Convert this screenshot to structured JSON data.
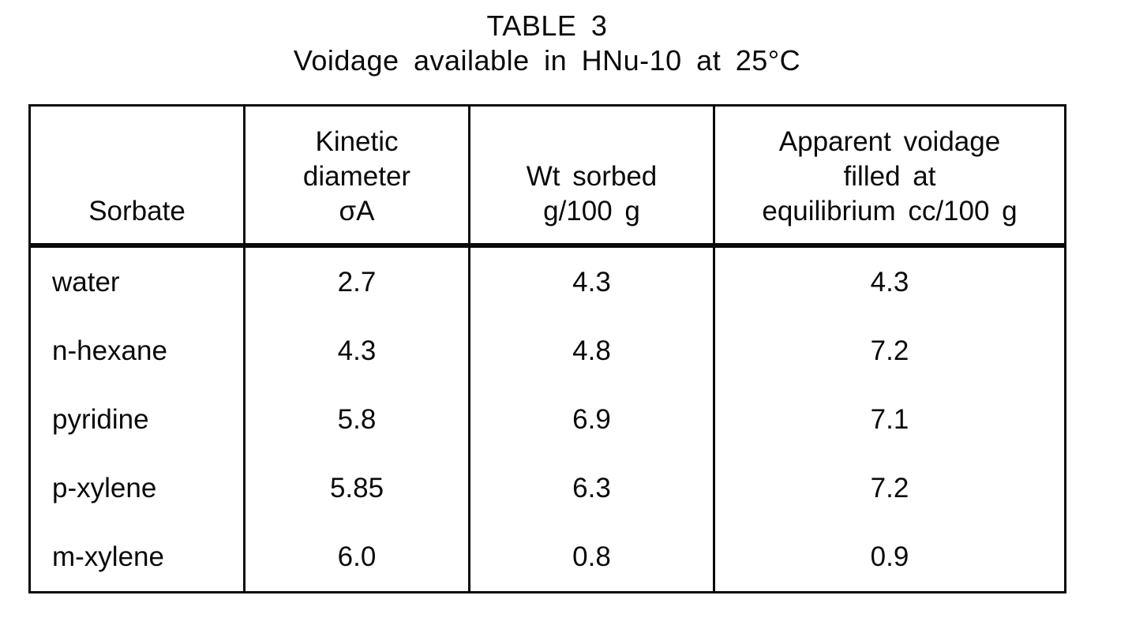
{
  "page": {
    "title_line1": "TABLE 3",
    "title_line2": "Voidage available in HNu-10 at 25°C"
  },
  "table": {
    "headers": {
      "sorbate": {
        "line1": "Sorbate"
      },
      "kinetic": {
        "line1": "Kinetic",
        "line2": "diameter",
        "line3": "σA"
      },
      "wt_sorbed": {
        "line1": "Wt sorbed",
        "line2": "g/100 g"
      },
      "apparent_voidage": {
        "line1": "Apparent voidage",
        "line2": "filled at",
        "line3": "equilibrium cc/100 g"
      }
    },
    "rows": [
      {
        "sorbate": "water",
        "kinetic_diameter": "2.7",
        "wt_sorbed": "4.3",
        "apparent_voidage": "4.3"
      },
      {
        "sorbate": "n-hexane",
        "kinetic_diameter": "4.3",
        "wt_sorbed": "4.8",
        "apparent_voidage": "7.2"
      },
      {
        "sorbate": "pyridine",
        "kinetic_diameter": "5.8",
        "wt_sorbed": "6.9",
        "apparent_voidage": "7.1"
      },
      {
        "sorbate": "p-xylene",
        "kinetic_diameter": "5.85",
        "wt_sorbed": "6.3",
        "apparent_voidage": "7.2"
      },
      {
        "sorbate": "m-xylene",
        "kinetic_diameter": "6.0",
        "wt_sorbed": "0.8",
        "apparent_voidage": "0.9"
      }
    ]
  },
  "chart_data": {
    "type": "table",
    "title": "TABLE 3",
    "subtitle": "Voidage available in HNu-10 at 25°C",
    "columns": [
      "Sorbate",
      "Kinetic diameter σA",
      "Wt sorbed g/100 g",
      "Apparent voidage filled at equilibrium cc/100 g"
    ],
    "rows": [
      [
        "water",
        2.7,
        4.3,
        4.3
      ],
      [
        "n-hexane",
        4.3,
        4.8,
        7.2
      ],
      [
        "pyridine",
        5.8,
        6.9,
        7.1
      ],
      [
        "p-xylene",
        5.85,
        6.3,
        7.2
      ],
      [
        "m-xylene",
        6.0,
        0.8,
        0.9
      ]
    ]
  },
  "colors": {
    "ink": "#0a0a0a",
    "paper": "#ffffff"
  }
}
